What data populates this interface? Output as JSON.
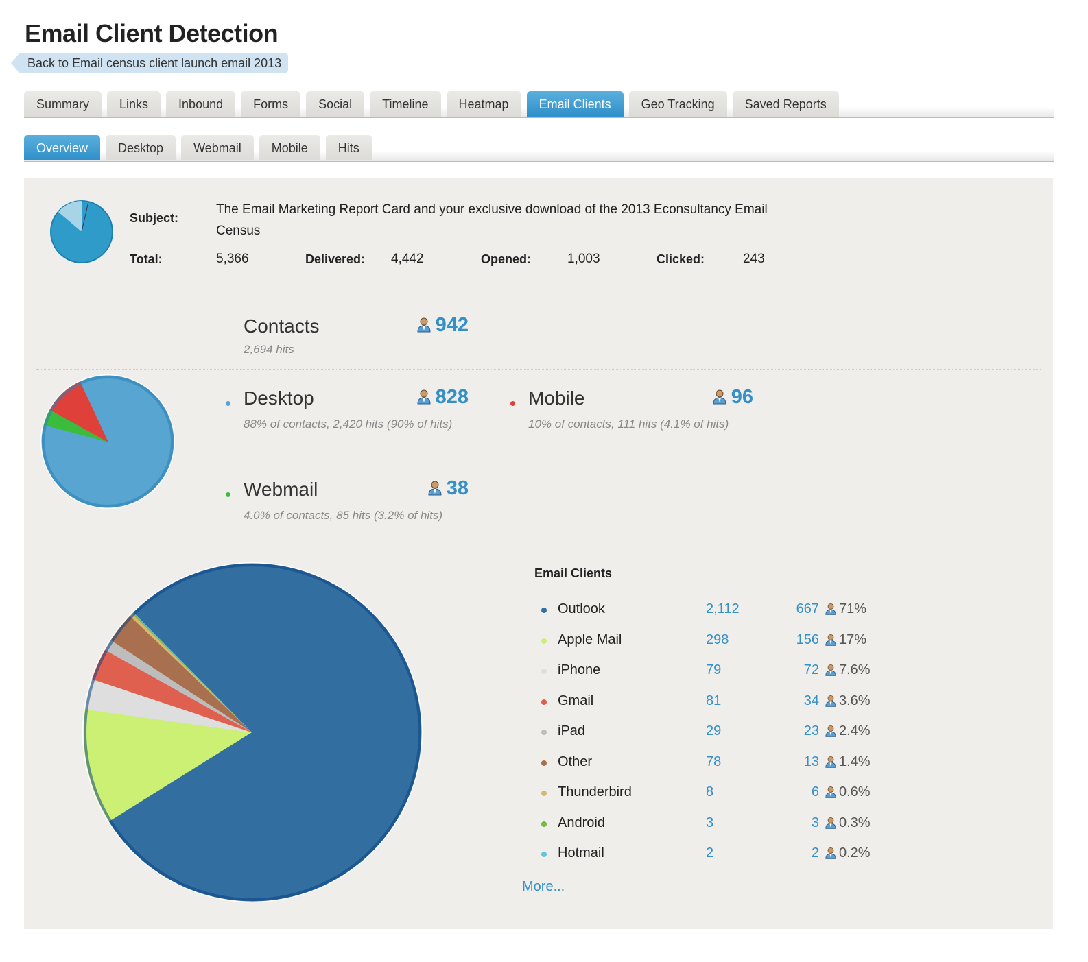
{
  "title": "Email Client Detection",
  "back_link": "Back to Email census client launch email 2013",
  "tabs": [
    "Summary",
    "Links",
    "Inbound",
    "Forms",
    "Social",
    "Timeline",
    "Heatmap",
    "Email Clients",
    "Geo Tracking",
    "Saved Reports"
  ],
  "active_tab": "Email Clients",
  "subtabs": [
    "Overview",
    "Desktop",
    "Webmail",
    "Mobile",
    "Hits"
  ],
  "active_subtab": "Overview",
  "email": {
    "subject_label": "Subject:",
    "subject": "The Email Marketing Report Card and your exclusive download of the 2013 Econsultancy Email Census",
    "total_label": "Total:",
    "total": "5,366",
    "delivered_label": "Delivered:",
    "delivered": "4,442",
    "opened_label": "Opened:",
    "opened": "1,003",
    "clicked_label": "Clicked:",
    "clicked": "243"
  },
  "contacts": {
    "label": "Contacts",
    "hits": "2,694 hits",
    "count": "942"
  },
  "platforms": [
    {
      "name": "Desktop",
      "count": "828",
      "desc": "88% of contacts, 2,420 hits (90% of hits)",
      "value": 828,
      "color": "#57a5d0"
    },
    {
      "name": "Mobile",
      "count": "96",
      "desc": "10% of contacts, 111 hits (4.1% of hits)",
      "value": 96,
      "color": "#e0403a"
    },
    {
      "name": "Webmail",
      "count": "38",
      "desc": "4.0% of contacts, 85 hits (3.2% of hits)",
      "value": 38,
      "color": "#3cbc3c"
    }
  ],
  "clients_heading": "Email Clients",
  "chart_data": {
    "type": "pie",
    "title": "Email Clients",
    "series": [
      {
        "name": "Outlook",
        "hits": 2112,
        "contacts": 667,
        "pct": "71%",
        "color": "#336ea0"
      },
      {
        "name": "Apple Mail",
        "hits": 298,
        "contacts": 156,
        "pct": "17%",
        "color": "#ccf073"
      },
      {
        "name": "iPhone",
        "hits": 79,
        "contacts": 72,
        "pct": "7.6%",
        "color": "#dedede"
      },
      {
        "name": "Gmail",
        "hits": 81,
        "contacts": 34,
        "pct": "3.6%",
        "color": "#e0604f"
      },
      {
        "name": "iPad",
        "hits": 29,
        "contacts": 23,
        "pct": "2.4%",
        "color": "#bdbdbd"
      },
      {
        "name": "Other",
        "hits": 78,
        "contacts": 13,
        "pct": "1.4%",
        "color": "#a8704f"
      },
      {
        "name": "Thunderbird",
        "hits": 8,
        "contacts": 6,
        "pct": "0.6%",
        "color": "#d8b870"
      },
      {
        "name": "Android",
        "hits": 3,
        "contacts": 3,
        "pct": "0.3%",
        "color": "#7ab840"
      },
      {
        "name": "Hotmail",
        "hits": 2,
        "contacts": 2,
        "pct": "0.2%",
        "color": "#5cc8d8"
      }
    ]
  },
  "more_link": "More..."
}
